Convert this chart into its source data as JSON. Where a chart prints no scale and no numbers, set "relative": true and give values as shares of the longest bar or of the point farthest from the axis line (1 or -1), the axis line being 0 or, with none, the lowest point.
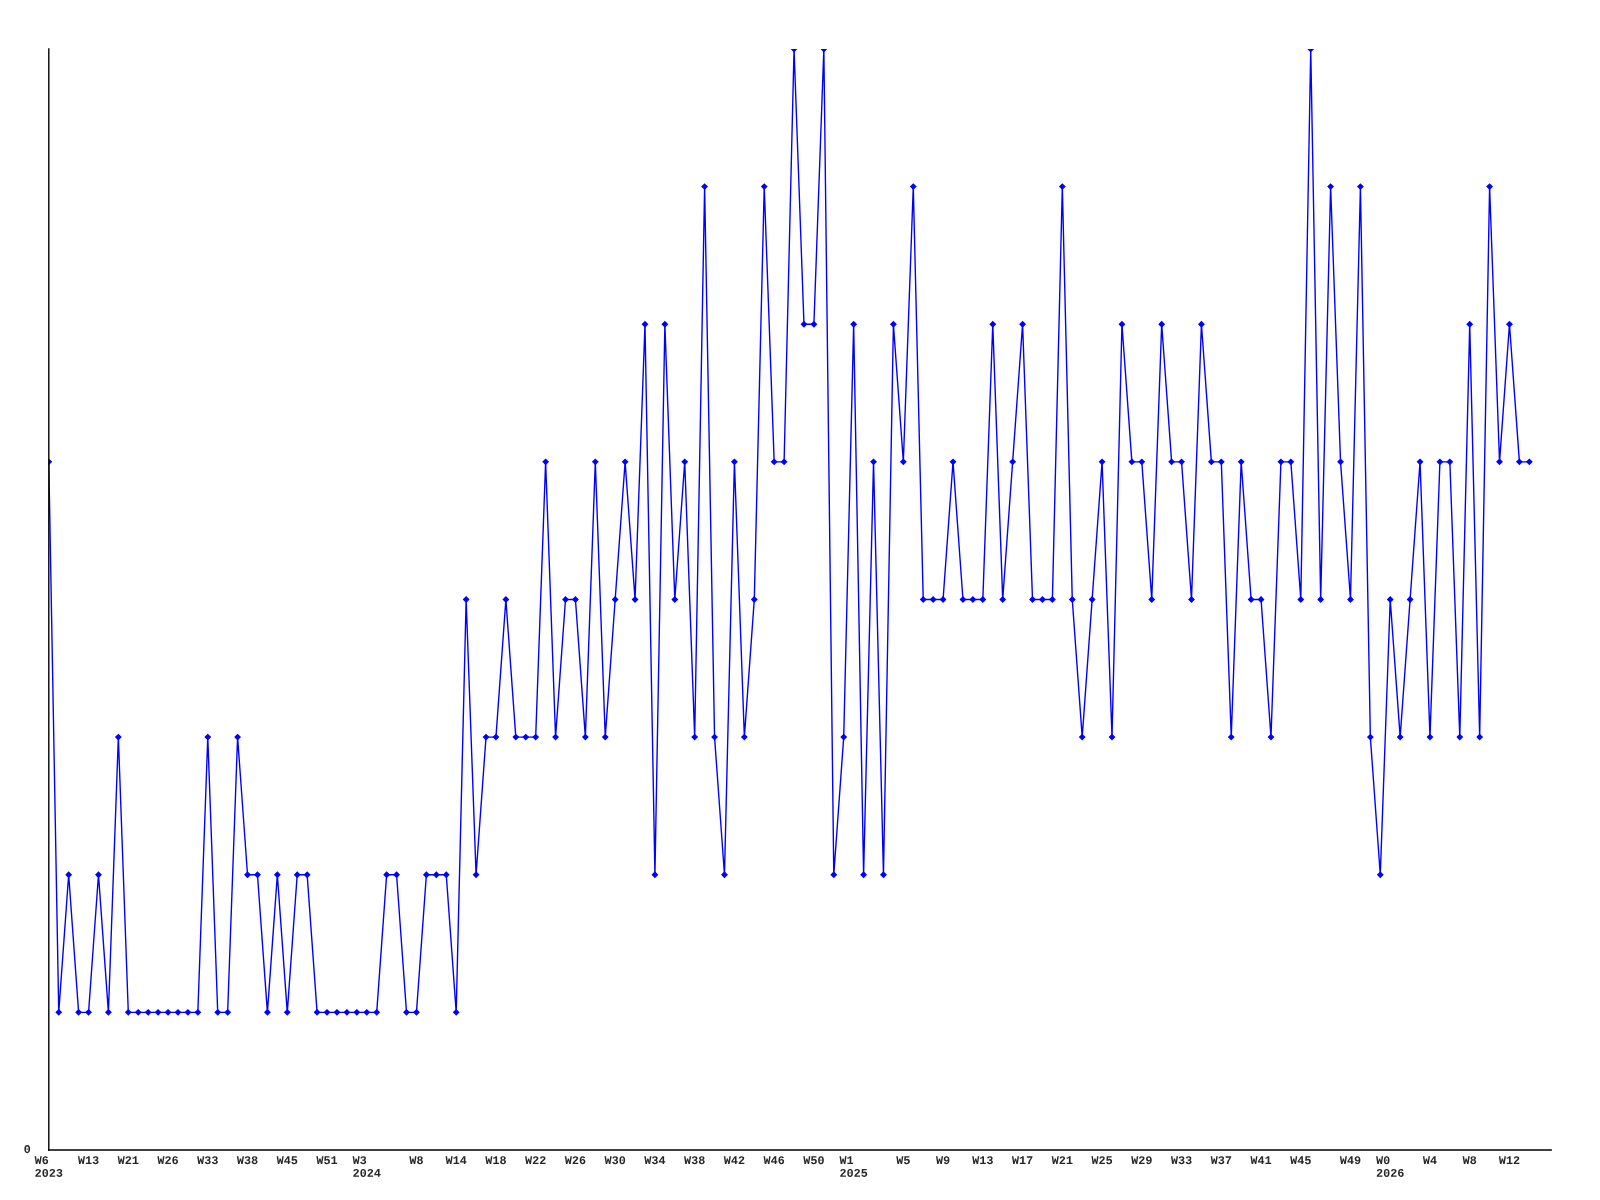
{
  "chart_data": {
    "type": "line",
    "relative": true,
    "marker": "diamond",
    "line_style": "solid",
    "grid": false,
    "legend": false,
    "tick_labels": "x",
    "annotations": [
      "0"
    ],
    "categories": [
      "W6\n2023",
      null,
      null,
      null,
      "W13",
      null,
      null,
      null,
      "W21",
      null,
      null,
      null,
      "W26",
      null,
      null,
      null,
      "W33",
      null,
      null,
      null,
      "W38",
      null,
      null,
      null,
      "W45",
      null,
      null,
      null,
      "W51",
      null,
      null,
      null,
      "W3\n2024",
      null,
      null,
      null,
      null,
      "W8",
      null,
      null,
      null,
      "W14",
      null,
      null,
      null,
      "W18",
      null,
      null,
      null,
      "W22",
      null,
      null,
      null,
      "W26",
      null,
      null,
      null,
      "W30",
      null,
      null,
      null,
      "W34",
      null,
      null,
      null,
      "W38",
      null,
      null,
      null,
      "W42",
      null,
      null,
      null,
      "W46",
      null,
      null,
      null,
      "W50",
      null,
      null,
      null,
      "W1\n2025",
      null,
      null,
      null,
      null,
      "W5",
      null,
      null,
      null,
      "W9",
      null,
      null,
      null,
      "W13",
      null,
      null,
      null,
      "W17",
      null,
      null,
      null,
      "W21",
      null,
      null,
      null,
      "W25",
      null,
      null,
      null,
      "W29",
      null,
      null,
      null,
      "W33",
      null,
      null,
      null,
      "W37",
      null,
      null,
      null,
      "W41",
      null,
      null,
      null,
      "W45",
      null,
      null,
      null,
      null,
      "W49",
      null,
      null,
      null,
      "W0\n2026",
      null,
      null,
      null,
      "W4",
      null,
      null,
      null,
      "W8",
      null,
      null,
      null,
      "W12",
      null,
      null
    ],
    "series": [
      {
        "color": "#0000ff",
        "values": [
          0.625,
          0.125,
          0.25,
          0.125,
          0.125,
          0.25,
          0.125,
          0.375,
          0.125,
          0.125,
          0.125,
          0.125,
          0.125,
          0.125,
          0.125,
          0.125,
          0.375,
          0.125,
          0.125,
          0.375,
          0.25,
          0.25,
          0.125,
          0.25,
          0.125,
          0.25,
          0.25,
          0.125,
          0.125,
          0.125,
          0.125,
          0.125,
          0.125,
          0.125,
          0.25,
          0.25,
          0.125,
          0.125,
          0.25,
          0.25,
          0.25,
          0.125,
          0.5,
          0.25,
          0.375,
          0.375,
          0.5,
          0.375,
          0.375,
          0.375,
          0.625,
          0.375,
          0.5,
          0.5,
          0.375,
          0.625,
          0.375,
          0.5,
          0.625,
          0.5,
          0.75,
          0.25,
          0.75,
          0.5,
          0.625,
          0.375,
          0.875,
          0.375,
          0.25,
          0.625,
          0.375,
          0.5,
          0.875,
          0.625,
          0.625,
          1,
          0.75,
          0.75,
          1,
          0.25,
          0.375,
          0.75,
          0.25,
          0.625,
          0.25,
          0.75,
          0.625,
          0.875,
          0.5,
          0.5,
          0.5,
          0.625,
          0.5,
          0.5,
          0.5,
          0.75,
          0.5,
          0.625,
          0.75,
          0.5,
          0.5,
          0.5,
          0.875,
          0.5,
          0.375,
          0.5,
          0.625,
          0.375,
          0.75,
          0.625,
          0.625,
          0.5,
          0.75,
          0.625,
          0.625,
          0.5,
          0.75,
          0.625,
          0.625,
          0.375,
          0.625,
          0.5,
          0.5,
          0.375,
          0.625,
          0.625,
          0.5,
          1,
          0.5,
          0.875,
          0.625,
          0.5,
          0.875,
          0.375,
          0.25,
          0.5,
          0.375,
          0.5,
          0.625,
          0.375,
          0.625,
          0.625,
          0.375,
          0.75,
          0.375,
          0.875,
          0.625,
          0.75,
          0.625,
          0.625
        ]
      }
    ]
  }
}
